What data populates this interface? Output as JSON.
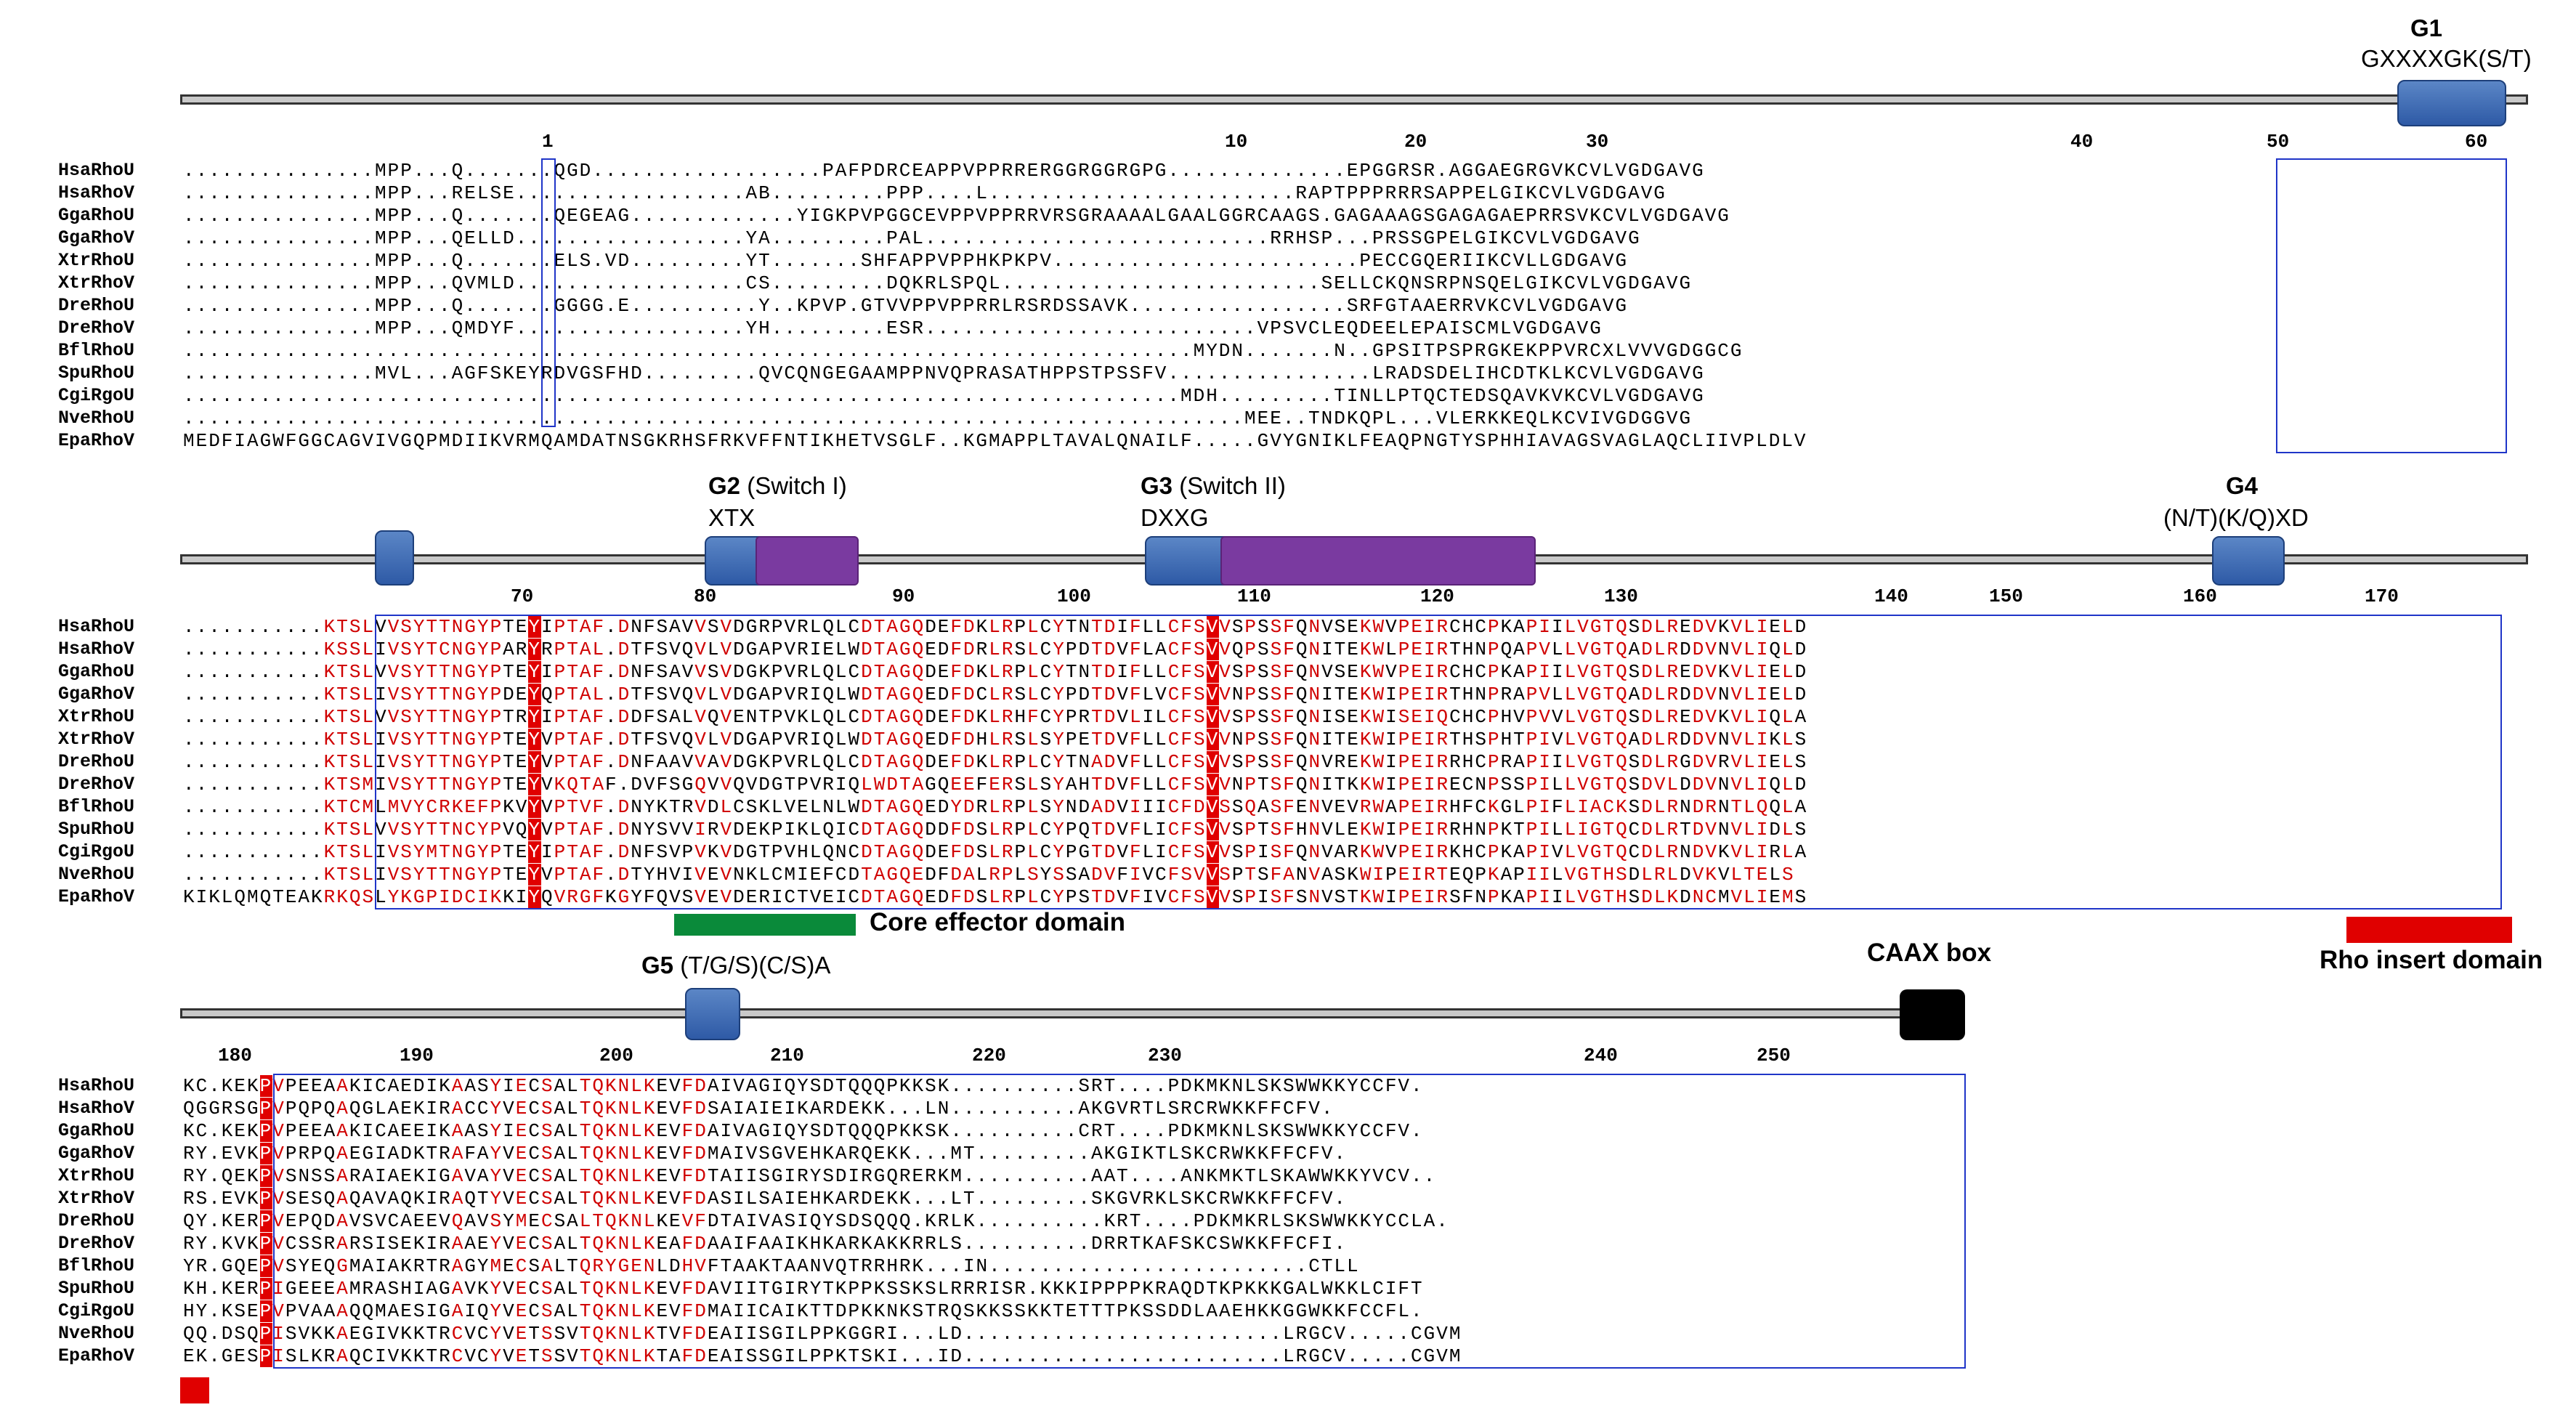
{
  "motifs": {
    "g1": {
      "name": "G1",
      "motif": "GXXXXGK(S/T)"
    },
    "g2": {
      "name": "G2",
      "sub": "(Switch I)",
      "motif": "XTX"
    },
    "g3": {
      "name": "G3",
      "sub": "(Switch II)",
      "motif": "DXXG"
    },
    "g4": {
      "name": "G4",
      "motif": "(N/T)(K/Q)XD"
    },
    "g5": {
      "name": "G5",
      "motif": "(T/G/S)(C/S)A"
    }
  },
  "annotations": {
    "core_effector": "Core effector domain",
    "caax": "CAAX box",
    "rho_insert": "Rho insert domain"
  },
  "block1_numbers": [
    "1",
    "10",
    "20",
    "30",
    "40",
    "50",
    "60"
  ],
  "block2_numbers": [
    "70",
    "80",
    "90",
    "100",
    "110",
    "120",
    "130",
    "140",
    "150",
    "160",
    "170"
  ],
  "block3_numbers": [
    "180",
    "190",
    "200",
    "210",
    "220",
    "230",
    "240",
    "250"
  ],
  "species": [
    "HsaRhoU",
    "HsaRhoV",
    "GgaRhoU",
    "GgaRhoV",
    "XtrRhoU",
    "XtrRhoV",
    "DreRhoU",
    "DreRhoV",
    "BflRhoU",
    "SpuRhoU",
    "CgiRgoU",
    "NveRhoU",
    "EpaRhoV"
  ],
  "block1_seqs": [
    "...............MPP...Q.......QGD..................PAFPDRCEAPPVPPRRERGGRGGRGPG..............EPGGRSR.AGGAEGRGVKCVLVGDGAVG",
    "...............MPP...RELSE..................AB.........PPP....L........................RAPTPPPRRRSAPPELGIKCVLVGDGAVG",
    "...............MPP...Q.......QEGEAG.............YIGKPVPGGCEVPPVPPRRVRSGRAAAALGAALGGRCAAGS.GAGAAAGSGAGAGAEPRRSVKCVLVGDGAVG",
    "...............MPP...QELLD..................YA.........PAL...........................RRHSP...PRSSGPELGIKCVLVGDGAVG",
    "...............MPP...Q.......ELS.VD.........YT.......SHFAPPVPPHKPKPV........................PECCGQERIIKCVLLGDGAVG",
    "...............MPP...QVMLD..................CS.........DQKRLSPQL.........................SELLCKQNSRPNSQELGIKCVLVGDGAVG",
    "...............MPP...Q.......GGGG.E..........Y..KPVP.GTVVPPVPPRRLRSRDSSAVK.................SRFGTAAERRVKCVLVGDGAVG",
    "...............MPP...QMDYF..................YH.........ESR..........................VPSVCLEQDEELEPAISCMLVGDGAVG",
    "...............................................................................MYDN.......N..GPSITPSPRGKEKPPVRCXLVVVGDGGCG",
    "...............MVL...AGFSKEYRDVGSFHD.........QVCQNGEGAAMPPNVQPRASATHPPSTPSSFV................LRADSDELIHCDTKLKCVLVGDGAVG",
    "..............................................................................MDH.........TINLLPTQCTEDSQAVKVKCVLVGDGAVG",
    "...................................................................................MEE..TNDKQPL...VLERKKEQLKCVIVGDGGVG",
    "MEDFIAGWFGGCAGVIVGQPMDIIKVRMQAMDATNSGKRHSFRKVFFNTIKHETVSGLF..KGMAPPLTAVALQNAILF.....GVYGNIKLFEAQPNGTYSPHHIAVAGSVAGLAQCLIIVPLDLV"
  ],
  "block2_seqs": [
    "...........KTSLVVSYTTNGYPTEYIPTAF.DNFSAVVSVDGRPVRLQLCDTAGQDEFDKLRPLCYTNTDIFLLCFSVVSPSSFQNVSEKWVPEIRCHCPKAPIILVGTQSDLREDVKVLIELD",
    "...........KSSLIVSYTCNGYPARYRPTAL.DTFSVQVLVDGAPVRIELWDTAGQEDFDRLRSLCYPDTDVFLACFSVVQPSSFQNITEKWLPEIRTHNPQAPVLLVGTQADLRDDVNVLIQLD",
    "...........KTSLVVSYTTNGYPTEYIPTAF.DNFSAVVSVDGKPVRLQLCDTAGQDEFDKLRPLCYTNTDIFLLCFSVVSPSSFQNVSEKWVPEIRCHCPKAPIILVGTQSDLREDVKVLIELD",
    "...........KTSLIVSYTTNGYPDEYQPTAL.DTFSVQVLVDGAPVRIQLWDTAGQEDFDCLRSLCYPDTDVFLVCFSVVNPSSFQNITEKWIPEIRTHNPRAPVLLVGTQADLRDDVNVLIELD",
    "...........KTSLVVSYTTNGYPTRYIPTAF.DDFSALVQVENTPVKLQLCDTAGQDEFDKLRHFCYPRTDVLILCFSVVSPSSFQNISEKWISEIQCHCPHVPVVLVGTQSDLREDVKVLIQLA",
    "...........KTSLIVSYTTNGYPTEYVPTAF.DTFSVQVLVDGAPVRIQLWDTAGQEDFDHLRSLSYPETDVFLLCFSVVNPSSFQNITEKWIPEIRTHSPHTPIVLVGTQADLRDDVNVLIKLS",
    "...........KTSLIVSYTTNGYPTEYVPTAF.DNFAAVVAVDGKPVRLQLCDTAGQDEFDKLRPLCYTNADVFLLCFSVVSPSSFQNVREKWIPEIRRHCPRAPIILVGTQSDLRGDVRVLIELS",
    "...........KTSMIVSYTTNGYPTEYVKQTAF.DVFSGQVVQVDGTPVRIQLWDTAGQEEFERSLSYAHTDVFLLCFSVVNPTSFQNITKKWIPEIRECNPSSPILLVGTQSDVLDDVNVLIQLD",
    "...........KTCMLMVYCRKEFPKVYVPTVF.DNYKTRVDLCSKLVELNLWDTAGQEDYDRLRPLSYNDADVIIICFDVSSQASFENVEVRWAPEIRHFCKGLPIFLIACKSDLRNDRNTLQQLA",
    "...........KTSLVVSYTTNCYPVQYVPTAF.DNYSVVIRVDEKPIKLQICDTAGQDDFDSLRPLCYPQTDVFLICFSVVSPTSFHNVLEKWIPEIRRHNPKTPILLIGTQCDLRTDVNVLIDLS",
    "...........KTSLIVSYMTNGYPTEYIPTAF.DNFSVPVKVDGTPVHLQNCDTAGQDEFDSLRPLCYPGTDVFLICFSVVSPISFQNVARKWVPEIRKHCPKAPIVLVGTQCDLRNDVKVLIRLA",
    "...........KTSLIVSYTTNGYPTEYVPTAF.DTYHVIVEVNKLCMIEFCDTAGQEDFDALRPLSYSSADVFIVCFSVVSPTSFANVASKWIPEIRTEQPKAPIILVGTHSDLRLDVKVLTELS",
    "KIKLQMQTEAKRKQSLYKGPIDCIKKIYQVRGFKGYFQVSVEVDERICTVEICDTAGQEDFDSLRPLCYPSTDVFIVCFSVVSPISFSNVSTKWIPEIRSFNPKAPIILVGTHSDLKDNCMVLIEMS"
  ],
  "block3_seqs": [
    "KC.KEKPVPEEAAKICAEDIKAASYIECSALTQKNLKEVFDAIVAGIQYSDTQQQPKKSK..........SRT....PDKMKNLSKSWWKKYCCFV.",
    "QGGRSGPVPQPQAQGLAEKIRACCYVECSALTQKNLKEVFDSAIAIEIKARDEKK...LN..........AKGVRTLSRCRWKKFFCFV.",
    "KC.KEKPVPEEAAKICAEEIKAASYIECSALTQKNLKEVFDAIVAGIQYSDTQQQPKKSK..........CRT....PDKMKNLSKSWWKKYCCFV.",
    "RY.EVKPVPRPQAEGIADKTRAFAYVECSALTQKNLKEVFDMAIVSGVEHKARQEKK...MT.........AKGIKTLSKCRWKKFFCFV.",
    "RY.QEKPVSNSSARAIAEKIGAVAYVECSALTQKNLKEVFDTAIISGIRYSDIRGQRERKM..........AAT....ANKMKTLSKAWWKKYVCV..",
    "RS.EVKPVSESQAQAVAQKIRAQTYVECSALTQKNLKEVFDASILSAIEHKARDEKK...LT.........SKGVRKLSKCRWKKFFCFV.",
    "QY.KERPVEPQDAVSVCAEEVQAVSYMECSALTQKNLKEVFDTAIVASIQYSDSQQQ.KRLK..........KRT....PDKMKRLSKSWWKKYCCLA.",
    "RY.KVKPVCSSRARSISEKIRAAEYVECSALTQKNLKEAFDAAIFAAIKHKARKAKKRRLS..........DRRTKAFSKCSWKKFFCFI.",
    "YR.GQEPVSYEQGMAIAKRTRAGYMECSALTQRYGENLDHVFTAAKTAANVQTRRHRK...IN.........................CTLL",
    "KH.KERPIGEEEAMRASHIAGAVKYVECSALTQKNLKEVFDAVIITGIRYTKPPKSSKSLRRRISR.KKKIPPPPKRAQDTKPKKKGALWKKLCIFT",
    "HY.KSEPVPVAAAQQMAESIGAIQYVECSALTQKNLKEVFDMAIICAIKTTDPKKNKSTRQSKKSSKKTETTTPKSSDDLAAEHKKGGWKKFCCFL.",
    "QQ.DSQPISVKKAEGIVKKTRCVCYVETSSVTQKNLKTVFDEAIISGILPPKGGRI...LD.........................LRGCV.....CGVM",
    "EK.GESPISLKRAQCIVKKTRCVCYVETSSVTQKNLKTAFDEAISSGILPPKTSKI...ID.........................LRGCV.....CGVM"
  ]
}
